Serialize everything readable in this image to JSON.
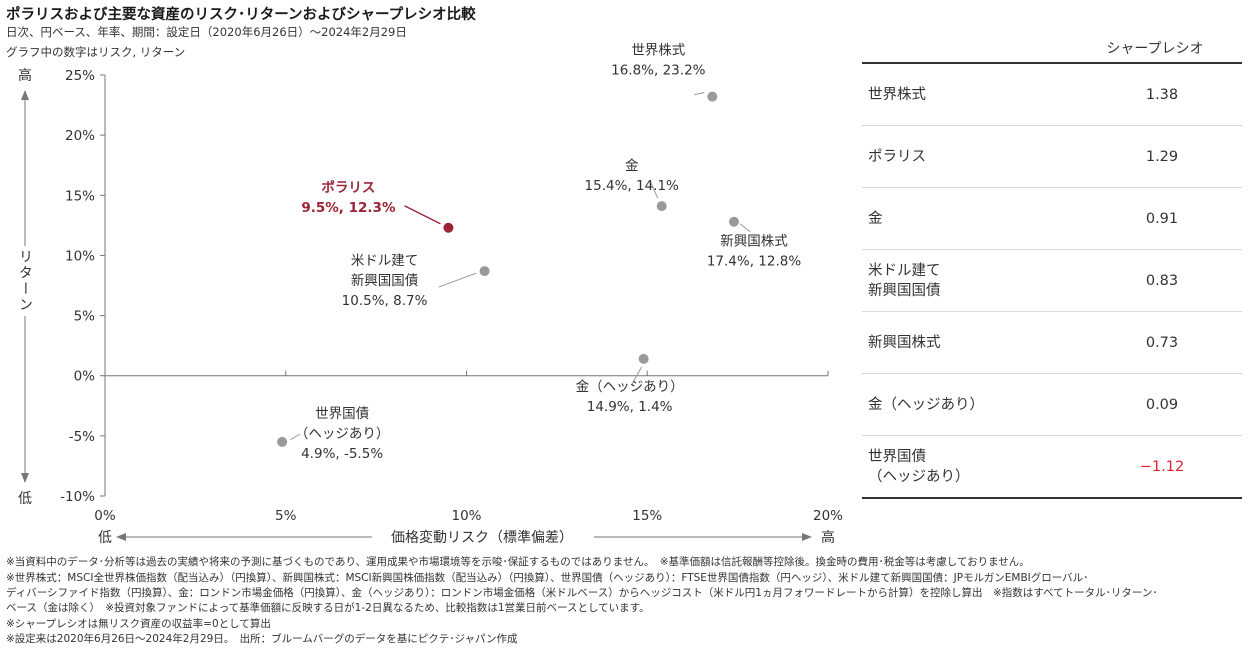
{
  "header": {
    "title": "ポラリスおよび主要な資産のリスク･リターンおよびシャープレシオ比較",
    "subtitle": "日次、円ベース、年率、期間：設定日（2020年6月26日）～2024年2月29日",
    "note": "グラフ中の数字はリスク, リターン"
  },
  "chart_data": {
    "type": "scatter",
    "xlabel": "価格変動リスク（標準偏差）",
    "ylabel": "リターン",
    "x_low_label": "低",
    "x_high_label": "高",
    "y_low_label": "低",
    "y_high_label": "高",
    "xlim": [
      0,
      20
    ],
    "ylim": [
      -10,
      25
    ],
    "x_ticks": [
      "0%",
      "5%",
      "10%",
      "15%",
      "20%"
    ],
    "y_ticks": [
      "25%",
      "20%",
      "15%",
      "10%",
      "5%",
      "0%",
      "-5%",
      "-10%"
    ],
    "points": [
      {
        "name": "世界株式",
        "value_label": "16.8%, 23.2%",
        "x": 16.8,
        "y": 23.2,
        "color": "#999999"
      },
      {
        "name": "金",
        "value_label": "15.4%, 14.1%",
        "x": 15.4,
        "y": 14.1,
        "color": "#999999"
      },
      {
        "name": "ポラリス",
        "value_label": "9.5%, 12.3%",
        "x": 9.5,
        "y": 12.3,
        "color": "#9b2335"
      },
      {
        "name": "新興国株式",
        "value_label": "17.4%, 12.8%",
        "x": 17.4,
        "y": 12.8,
        "color": "#999999"
      },
      {
        "name": "米ドル建て\n新興国国債",
        "value_label": "10.5%, 8.7%",
        "x": 10.5,
        "y": 8.7,
        "color": "#999999"
      },
      {
        "name": "金（ヘッジあり）",
        "value_label": "14.9%, 1.4%",
        "x": 14.9,
        "y": 1.4,
        "color": "#999999"
      },
      {
        "name": "世界国債\n（ヘッジあり）",
        "value_label": "4.9%, -5.5%",
        "x": 4.9,
        "y": -5.5,
        "color": "#999999"
      }
    ]
  },
  "sharpe": {
    "header": "シャープレシオ",
    "rows": [
      {
        "name": "世界株式",
        "value": "1.38",
        "negative": false
      },
      {
        "name": "ポラリス",
        "value": "1.29",
        "negative": false
      },
      {
        "name": "金",
        "value": "0.91",
        "negative": false
      },
      {
        "name": "米ドル建て\n新興国国債",
        "value": "0.83",
        "negative": false
      },
      {
        "name": "新興国株式",
        "value": "0.73",
        "negative": false
      },
      {
        "name": "金（ヘッジあり）",
        "value": "0.09",
        "negative": false
      },
      {
        "name": "世界国債\n（ヘッジあり）",
        "value": "−1.12",
        "negative": true
      }
    ]
  },
  "footnotes": [
    "※当資料中のデータ･分析等は過去の実績や将来の予測に基づくものであり、運用成果や市場環境等を示唆･保証するものではありません。　※基準価額は信託報酬等控除後。換金時の費用･税金等は考慮しておりません。",
    "※世界株式：MSCI全世界株価指数（配当込み）（円換算）、新興国株式：MSCI新興国株価指数（配当込み）（円換算）、世界国債（ヘッジあり）：FTSE世界国債指数（円ヘッジ）、米ドル建て新興国国債：JPモルガンEMBIグローバル･",
    "ディバーシファイド指数（円換算）、金：ロンドン市場金価格（円換算）、金（ヘッジあり）：ロンドン市場金価格（米ドルベース）からヘッジコスト（米ドル円1ヵ月フォワードレートから計算）を控除し算出　※指数はすべてトータル･リターン･",
    "ベース（金は除く）　※投資対象ファンドによって基準価額に反映する日が1-2日異なるため、比較指数は1営業日前ベースとしています。",
    "※シャープレシオは無リスク資産の収益率=0として算出",
    "※設定来は2020年6月26日～2024年2月29日。　出所：ブルームバーグのデータを基にピクテ･ジャパン作成"
  ]
}
